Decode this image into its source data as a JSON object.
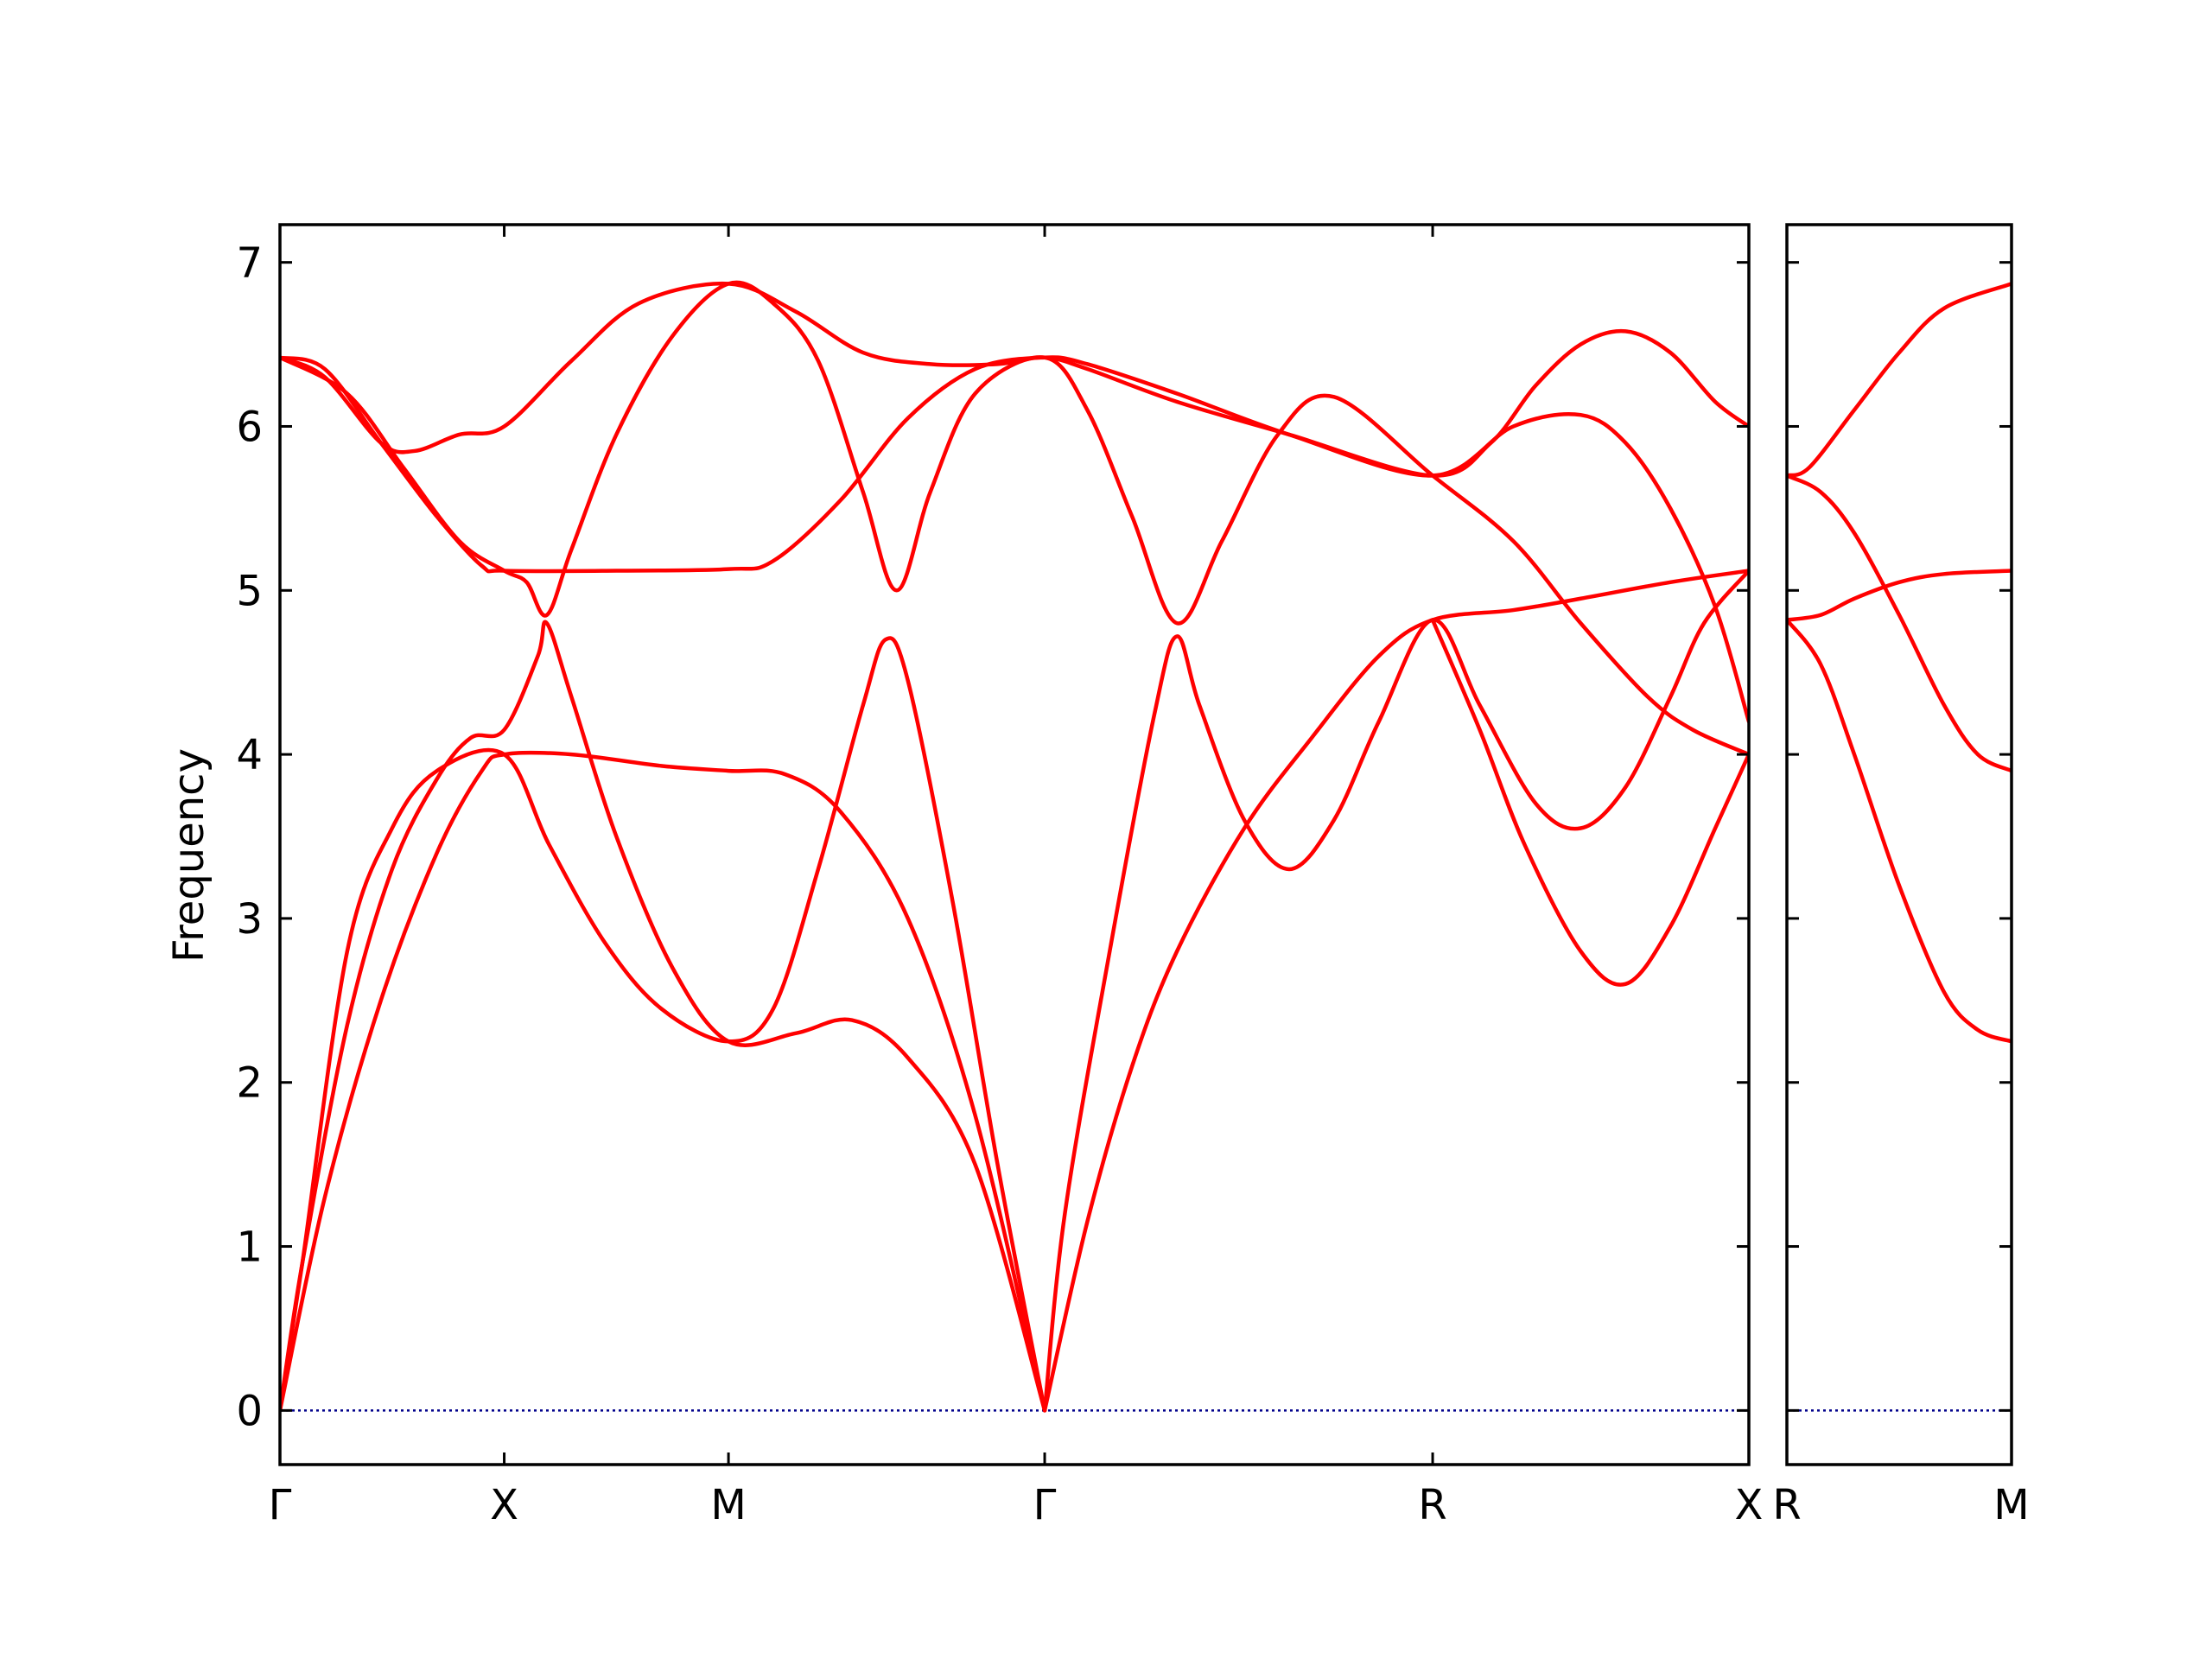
{
  "chart_data": {
    "type": "line",
    "ylabel": "Frequency",
    "ylim": [
      -0.33,
      7.23
    ],
    "yticks": [
      0,
      1,
      2,
      3,
      4,
      5,
      6,
      7
    ],
    "line_color": "#ff0000",
    "zero_line_color": "#00008b",
    "panels": [
      {
        "xlim": [
          0,
          6.55
        ],
        "kpoints": [
          {
            "x": 0,
            "label": "Γ"
          },
          {
            "x": 1.0,
            "label": "X"
          },
          {
            "x": 2.0,
            "label": "M"
          },
          {
            "x": 3.41,
            "label": "Γ"
          },
          {
            "x": 5.14,
            "label": "R"
          },
          {
            "x": 6.55,
            "label": "X"
          }
        ],
        "series": [
          {
            "points": [
              [
                0,
                0
              ],
              [
                0.1,
                0.9
              ],
              [
                0.3,
                2.35
              ],
              [
                0.5,
                3.3
              ],
              [
                0.7,
                3.85
              ],
              [
                0.85,
                4.1
              ],
              [
                1.0,
                4.15
              ],
              [
                1.15,
                4.6
              ],
              [
                1.19,
                4.8
              ],
              [
                1.3,
                4.35
              ],
              [
                1.5,
                3.5
              ],
              [
                1.75,
                2.7
              ],
              [
                2.0,
                2.25
              ],
              [
                2.3,
                2.3
              ],
              [
                2.55,
                2.38
              ],
              [
                2.8,
                2.15
              ],
              [
                3.1,
                1.5
              ],
              [
                3.41,
                0
              ]
            ]
          },
          {
            "points": [
              [
                0,
                0
              ],
              [
                0.2,
                1.3
              ],
              [
                0.45,
                2.5
              ],
              [
                0.7,
                3.4
              ],
              [
                0.9,
                3.9
              ],
              [
                1.0,
                4.0
              ],
              [
                1.3,
                4.0
              ],
              [
                1.7,
                3.93
              ],
              [
                2.0,
                3.9
              ],
              [
                2.25,
                3.88
              ],
              [
                2.5,
                3.65
              ],
              [
                2.8,
                3.0
              ],
              [
                3.1,
                1.8
              ],
              [
                3.41,
                0
              ]
            ]
          },
          {
            "points": [
              [
                0,
                0
              ],
              [
                0.1,
                0.9
              ],
              [
                0.3,
                2.8
              ],
              [
                0.5,
                3.55
              ],
              [
                0.7,
                3.9
              ],
              [
                1.0,
                4.0
              ],
              [
                1.2,
                3.45
              ],
              [
                1.45,
                2.85
              ],
              [
                1.7,
                2.45
              ],
              [
                2.0,
                2.25
              ],
              [
                2.2,
                2.45
              ],
              [
                2.4,
                3.3
              ],
              [
                2.6,
                4.3
              ],
              [
                2.7,
                4.7
              ],
              [
                2.8,
                4.45
              ],
              [
                3.0,
                3.1
              ],
              [
                3.2,
                1.5
              ],
              [
                3.41,
                0
              ]
            ]
          },
          {
            "points": [
              [
                0,
                6.42
              ],
              [
                0.2,
                6.3
              ],
              [
                0.45,
                5.9
              ],
              [
                0.6,
                5.85
              ],
              [
                0.8,
                5.95
              ],
              [
                1.0,
                6.0
              ],
              [
                1.3,
                6.4
              ],
              [
                1.6,
                6.75
              ],
              [
                2.0,
                6.87
              ],
              [
                2.3,
                6.7
              ],
              [
                2.6,
                6.45
              ],
              [
                2.9,
                6.38
              ],
              [
                3.2,
                6.38
              ],
              [
                3.41,
                6.42
              ],
              [
                3.6,
                6.35
              ],
              [
                4.0,
                6.15
              ],
              [
                4.5,
                5.95
              ],
              [
                5.14,
                5.7
              ],
              [
                5.4,
                5.9
              ],
              [
                5.6,
                6.25
              ],
              [
                5.8,
                6.5
              ],
              [
                6.0,
                6.58
              ],
              [
                6.2,
                6.45
              ],
              [
                6.4,
                6.15
              ],
              [
                6.55,
                6.0
              ]
            ]
          },
          {
            "points": [
              [
                0,
                6.42
              ],
              [
                0.2,
                6.35
              ],
              [
                0.45,
                5.9
              ],
              [
                0.7,
                5.45
              ],
              [
                0.9,
                5.15
              ],
              [
                1.0,
                5.12
              ],
              [
                1.5,
                5.12
              ],
              [
                2.0,
                5.13
              ],
              [
                2.2,
                5.18
              ],
              [
                2.5,
                5.55
              ],
              [
                2.8,
                6.05
              ],
              [
                3.1,
                6.35
              ],
              [
                3.41,
                6.42
              ],
              [
                3.6,
                6.38
              ],
              [
                4.0,
                6.2
              ],
              [
                4.5,
                5.95
              ],
              [
                5.14,
                5.7
              ],
              [
                5.5,
                6.0
              ],
              [
                5.8,
                6.07
              ],
              [
                6.0,
                5.9
              ],
              [
                6.2,
                5.5
              ],
              [
                6.4,
                4.9
              ],
              [
                6.55,
                4.2
              ]
            ]
          },
          {
            "points": [
              [
                0,
                6.42
              ],
              [
                0.3,
                6.2
              ],
              [
                0.55,
                5.75
              ],
              [
                0.8,
                5.3
              ],
              [
                1.0,
                5.12
              ],
              [
                1.1,
                5.05
              ],
              [
                1.19,
                4.85
              ],
              [
                1.3,
                5.25
              ],
              [
                1.5,
                5.95
              ],
              [
                1.75,
                6.55
              ],
              [
                2.0,
                6.87
              ],
              [
                2.2,
                6.75
              ],
              [
                2.4,
                6.4
              ],
              [
                2.6,
                5.6
              ],
              [
                2.75,
                5.0
              ],
              [
                2.9,
                5.6
              ],
              [
                3.1,
                6.2
              ],
              [
                3.41,
                6.42
              ],
              [
                3.6,
                6.1
              ],
              [
                3.8,
                5.45
              ],
              [
                4.0,
                4.8
              ],
              [
                4.2,
                5.3
              ],
              [
                4.45,
                5.95
              ],
              [
                4.7,
                6.18
              ],
              [
                5.14,
                5.7
              ],
              [
                5.5,
                5.3
              ],
              [
                5.8,
                4.8
              ],
              [
                6.1,
                4.35
              ],
              [
                6.3,
                4.15
              ],
              [
                6.55,
                4.0
              ]
            ]
          },
          {
            "points": [
              [
                3.41,
                0
              ],
              [
                3.6,
                1.15
              ],
              [
                3.8,
                2.1
              ],
              [
                4.0,
                2.8
              ],
              [
                4.3,
                3.55
              ],
              [
                4.6,
                4.1
              ],
              [
                4.9,
                4.6
              ],
              [
                5.14,
                4.82
              ],
              [
                5.5,
                4.88
              ],
              [
                5.8,
                4.95
              ],
              [
                6.2,
                5.05
              ],
              [
                6.55,
                5.12
              ]
            ]
          },
          {
            "points": [
              [
                3.41,
                0
              ],
              [
                3.5,
                1.2
              ],
              [
                3.7,
                2.8
              ],
              [
                3.9,
                4.25
              ],
              [
                4.0,
                4.72
              ],
              [
                4.1,
                4.3
              ],
              [
                4.3,
                3.6
              ],
              [
                4.5,
                3.3
              ],
              [
                4.7,
                3.6
              ],
              [
                4.9,
                4.2
              ],
              [
                5.14,
                4.82
              ],
              [
                5.35,
                4.3
              ],
              [
                5.6,
                3.7
              ],
              [
                5.8,
                3.55
              ],
              [
                6.0,
                3.8
              ],
              [
                6.2,
                4.35
              ],
              [
                6.35,
                4.8
              ],
              [
                6.55,
                5.12
              ]
            ]
          },
          {
            "points": [
              [
                5.14,
                4.82
              ],
              [
                5.35,
                4.15
              ],
              [
                5.55,
                3.45
              ],
              [
                5.8,
                2.8
              ],
              [
                6.0,
                2.6
              ],
              [
                6.2,
                2.95
              ],
              [
                6.4,
                3.55
              ],
              [
                6.55,
                4.0
              ]
            ]
          }
        ]
      },
      {
        "xlim": [
          0,
          1.0
        ],
        "kpoints": [
          {
            "x": 0,
            "label": "R"
          },
          {
            "x": 1.0,
            "label": "M"
          }
        ],
        "series": [
          {
            "points": [
              [
                0,
                5.7
              ],
              [
                0.1,
                5.75
              ],
              [
                0.3,
                6.1
              ],
              [
                0.5,
                6.45
              ],
              [
                0.7,
                6.72
              ],
              [
                1.0,
                6.87
              ]
            ]
          },
          {
            "points": [
              [
                0,
                5.7
              ],
              [
                0.15,
                5.6
              ],
              [
                0.3,
                5.35
              ],
              [
                0.5,
                4.85
              ],
              [
                0.7,
                4.3
              ],
              [
                0.85,
                4.0
              ],
              [
                1.0,
                3.9
              ]
            ]
          },
          {
            "points": [
              [
                0,
                4.82
              ],
              [
                0.15,
                4.85
              ],
              [
                0.3,
                4.95
              ],
              [
                0.5,
                5.05
              ],
              [
                0.7,
                5.1
              ],
              [
                1.0,
                5.12
              ]
            ]
          },
          {
            "points": [
              [
                0,
                4.82
              ],
              [
                0.15,
                4.55
              ],
              [
                0.3,
                4.0
              ],
              [
                0.5,
                3.2
              ],
              [
                0.7,
                2.55
              ],
              [
                0.85,
                2.32
              ],
              [
                1.0,
                2.25
              ]
            ]
          }
        ]
      }
    ]
  }
}
